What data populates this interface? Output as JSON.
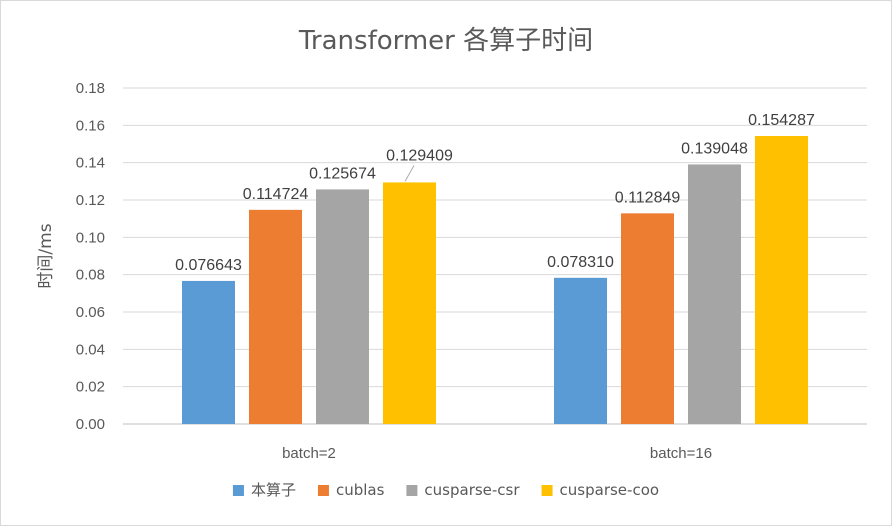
{
  "chart_data": {
    "type": "bar",
    "title": "Transformer 各算子时间",
    "xlabel": "",
    "ylabel": "时间/ms",
    "ylim": [
      0,
      0.18
    ],
    "ytick_step": 0.02,
    "ytick_labels": [
      "0.00",
      "0.02",
      "0.04",
      "0.06",
      "0.08",
      "0.10",
      "0.12",
      "0.14",
      "0.16",
      "0.18"
    ],
    "grid": true,
    "legend_position": "bottom",
    "categories": [
      "batch=2",
      "batch=16"
    ],
    "series": [
      {
        "name": "本算子",
        "color": "#5b9bd5",
        "values": [
          0.076643,
          0.07831
        ],
        "labels": [
          "0.076643",
          "0.078310"
        ]
      },
      {
        "name": "cublas",
        "color": "#ed7d31",
        "values": [
          0.114724,
          0.112849
        ],
        "labels": [
          "0.114724",
          "0.112849"
        ]
      },
      {
        "name": "cusparse-csr",
        "color": "#a5a5a5",
        "values": [
          0.125674,
          0.139048
        ],
        "labels": [
          "0.125674",
          "0.139048"
        ]
      },
      {
        "name": "cusparse-coo",
        "color": "#ffc000",
        "values": [
          0.129409,
          0.154287
        ],
        "labels": [
          "0.129409",
          "0.154287"
        ]
      }
    ]
  }
}
